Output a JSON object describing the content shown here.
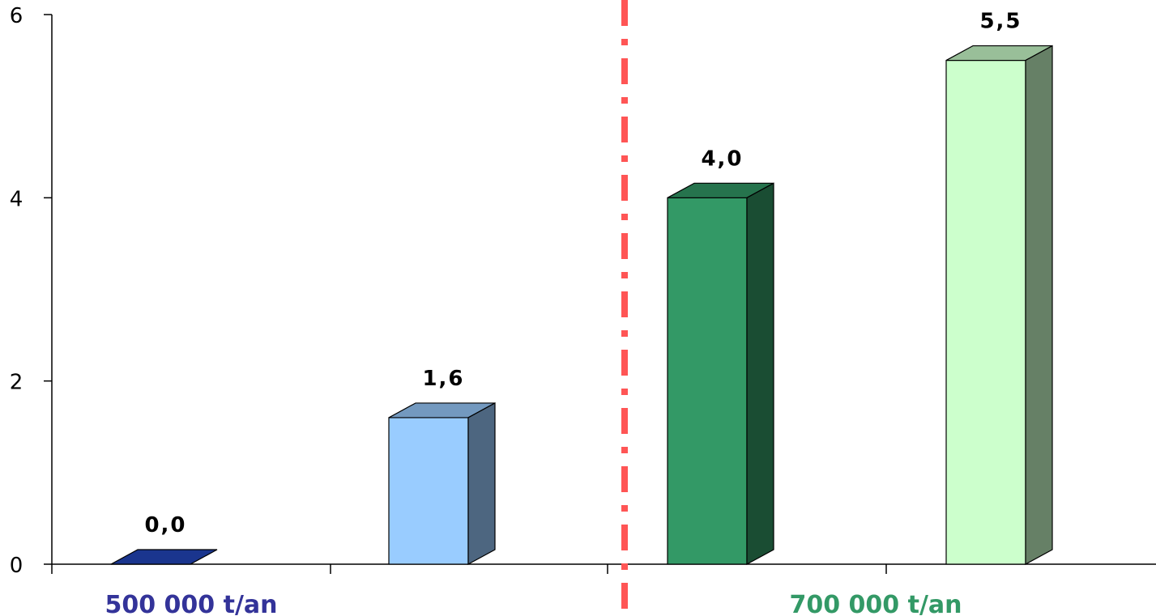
{
  "chart_data": {
    "type": "bar",
    "title": "",
    "xlabel": "",
    "ylabel": "",
    "ylim": [
      0,
      6
    ],
    "yticks": [
      0,
      2,
      4,
      6
    ],
    "grid": false,
    "groups": [
      {
        "label": "500 000 t/an",
        "color": "#333399"
      },
      {
        "label": "700 000 t/an",
        "color": "#339966"
      }
    ],
    "bars": [
      {
        "value": 0.0,
        "label": "0,0",
        "color": "#2347bd"
      },
      {
        "value": 1.6,
        "label": "1,6",
        "color": "#99ccff"
      },
      {
        "value": 4.0,
        "label": "4,0",
        "color": "#339966"
      },
      {
        "value": 5.5,
        "label": "5,5",
        "color": "#ccffcc"
      }
    ],
    "separator": {
      "style": "dash-dot",
      "color": "#ff5555"
    }
  }
}
